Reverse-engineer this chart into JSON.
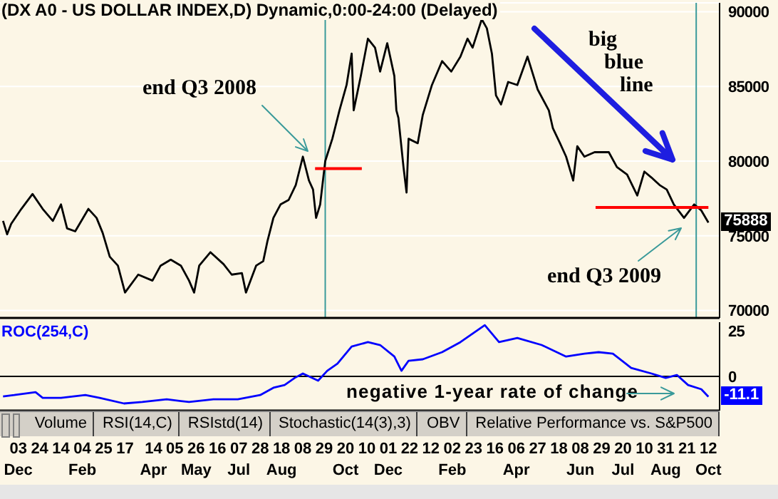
{
  "chart_data": [
    {
      "type": "line",
      "title": "(DX A0 - US DOLLAR INDEX,D) Dynamic,0:00-24:00 (Delayed)",
      "x": [
        "2007-11-18",
        "2007-11-22",
        "2007-11-26",
        "2007-12-06",
        "2007-12-17",
        "2007-12-27",
        "2008-01-06",
        "2008-01-14",
        "2008-01-20",
        "2008-01-28",
        "2008-02-10",
        "2008-02-18",
        "2008-02-24",
        "2008-03-02",
        "2008-03-10",
        "2008-03-17",
        "2008-03-30",
        "2008-04-13",
        "2008-04-21",
        "2008-05-01",
        "2008-05-11",
        "2008-05-19",
        "2008-05-24",
        "2008-05-29",
        "2008-06-09",
        "2008-06-22",
        "2008-06-30",
        "2008-07-10",
        "2008-07-14",
        "2008-07-24",
        "2008-07-31",
        "2008-08-04",
        "2008-08-10",
        "2008-08-17",
        "2008-08-25",
        "2008-09-01",
        "2008-09-08",
        "2008-09-14",
        "2008-09-18",
        "2008-09-21",
        "2008-09-25",
        "2008-09-30",
        "2008-10-07",
        "2008-10-14",
        "2008-10-21",
        "2008-10-26",
        "2008-10-28",
        "2008-11-04",
        "2008-11-11",
        "2008-11-18",
        "2008-11-23",
        "2008-11-30",
        "2008-12-07",
        "2008-12-09",
        "2008-12-11",
        "2008-12-16",
        "2008-12-19",
        "2008-12-21",
        "2008-12-30",
        "2009-01-04",
        "2009-01-13",
        "2009-01-23",
        "2009-02-01",
        "2009-02-10",
        "2009-02-17",
        "2009-02-22",
        "2009-03-03",
        "2009-03-08",
        "2009-03-13",
        "2009-03-17",
        "2009-03-22",
        "2009-03-29",
        "2009-04-07",
        "2009-04-17",
        "2009-04-27",
        "2009-05-08",
        "2009-05-12",
        "2009-05-19",
        "2009-05-25",
        "2009-06-01",
        "2009-06-05",
        "2009-06-12",
        "2009-06-22",
        "2009-07-06",
        "2009-07-14",
        "2009-07-24",
        "2009-08-03",
        "2009-08-10",
        "2009-08-17",
        "2009-08-25",
        "2009-09-01",
        "2009-09-08",
        "2009-09-18",
        "2009-09-28",
        "2009-10-05",
        "2009-10-12"
      ],
      "series": [
        {
          "color": "#000000",
          "values": [
            76000,
            75100,
            75800,
            76800,
            77800,
            76800,
            76000,
            77100,
            75500,
            75300,
            76800,
            76200,
            75200,
            73600,
            73000,
            71200,
            72400,
            72000,
            73000,
            73400,
            73000,
            72000,
            71200,
            73000,
            73900,
            73100,
            72400,
            72500,
            71200,
            73000,
            73300,
            74600,
            76200,
            77100,
            77400,
            78400,
            80300,
            78700,
            78100,
            76200,
            77100,
            80000,
            81500,
            83400,
            85100,
            87200,
            83400,
            85700,
            88200,
            87600,
            86000,
            87900,
            85700,
            83400,
            82900,
            79600,
            77900,
            81500,
            81200,
            83100,
            85100,
            86700,
            86000,
            87000,
            88200,
            87600,
            89500,
            88900,
            87200,
            84400,
            83800,
            85300,
            85100,
            87000,
            84800,
            83400,
            82200,
            81200,
            80300,
            78700,
            81000,
            80300,
            80600,
            80600,
            79600,
            79100,
            77700,
            79300,
            78900,
            78400,
            78100,
            77100,
            76200,
            77100,
            76700,
            75888
          ]
        },
        {
          "type": "line",
          "color": "#ff0000",
          "x": [
            "2008-09-20",
            "2008-11-05"
          ],
          "values": [
            79500,
            79500
          ]
        },
        {
          "type": "line",
          "color": "#ff0000",
          "x": [
            "2009-06-23",
            "2009-10-12"
          ],
          "values": [
            76900,
            76900
          ]
        }
      ],
      "xlim": [
        "2007-11-15",
        "2009-10-23"
      ],
      "ylim": [
        69500,
        90600
      ],
      "yticks": [
        70000,
        75000,
        80000,
        85000,
        90000
      ],
      "grid": "y",
      "tick_labels": "y",
      "ref_lines": [
        {
          "axis": "x",
          "value": "2008-09-30",
          "color": "#3a9a9a"
        },
        {
          "axis": "x",
          "value": "2009-09-30",
          "color": "#3a9a9a"
        }
      ],
      "annotations": [
        "end Q3 2008",
        "big blue line",
        "end Q3 2009",
        {
          "text": "75888",
          "x": "2009-10-12",
          "y": 75888
        }
      ]
    },
    {
      "type": "line",
      "x": [
        "2007-11-18",
        "2007-11-29",
        "2007-12-20",
        "2007-12-27",
        "2008-01-14",
        "2008-02-07",
        "2008-02-21",
        "2008-03-16",
        "2008-04-03",
        "2008-04-27",
        "2008-05-19",
        "2008-06-12",
        "2008-07-06",
        "2008-07-28",
        "2008-08-10",
        "2008-08-21",
        "2008-08-31",
        "2008-09-08",
        "2008-09-23",
        "2008-10-02",
        "2008-10-12",
        "2008-10-26",
        "2008-11-11",
        "2008-11-23",
        "2008-12-07",
        "2008-12-14",
        "2008-12-21",
        "2009-01-04",
        "2009-01-23",
        "2009-02-10",
        "2009-03-06",
        "2009-03-20",
        "2009-04-07",
        "2009-05-01",
        "2009-05-25",
        "2009-06-12",
        "2009-06-26",
        "2009-07-10",
        "2009-07-28",
        "2009-08-17",
        "2009-08-31",
        "2009-09-11",
        "2009-09-22",
        "2009-10-05",
        "2009-10-12"
      ],
      "series": [
        {
          "name": "ROC(254,C)",
          "color": "#0000ff",
          "values": [
            -10.9,
            -10.2,
            -8.6,
            -11.7,
            -11.7,
            -10.2,
            -11.7,
            -14.8,
            -14,
            -12.5,
            -14,
            -12.5,
            -12.5,
            -10.2,
            -6.2,
            -4.7,
            -0.8,
            1.6,
            -2.3,
            3.1,
            7,
            16.4,
            18.8,
            17.2,
            10.9,
            3.1,
            8.6,
            9.4,
            13.3,
            18.8,
            28.1,
            18.8,
            21.1,
            17.2,
            10.9,
            12.5,
            13.3,
            12.5,
            4.7,
            1.6,
            -0.8,
            0.8,
            -4.7,
            -7,
            -11.1
          ]
        }
      ],
      "xlim": [
        "2007-11-15",
        "2009-10-23"
      ],
      "xticks": [
        {
          "value": "2007-12-03",
          "label": "03\nDec"
        },
        {
          "value": "2007-12-24",
          "label": "24"
        },
        {
          "value": "2008-01-14",
          "label": "14"
        },
        {
          "value": "2008-02-04",
          "label": "04\nFeb"
        },
        {
          "value": "2008-02-25",
          "label": "25"
        },
        {
          "value": "2008-03-17",
          "label": "17"
        },
        {
          "value": "2008-04-14",
          "label": "14\nApr"
        },
        {
          "value": "2008-05-05",
          "label": "05"
        },
        {
          "value": "2008-05-26",
          "label": "26\nMay"
        },
        {
          "value": "2008-06-16",
          "label": "16"
        },
        {
          "value": "2008-07-07",
          "label": "07\nJul"
        },
        {
          "value": "2008-07-28",
          "label": "28"
        },
        {
          "value": "2008-08-18",
          "label": "18\nAug"
        },
        {
          "value": "2008-09-08",
          "label": "08"
        },
        {
          "value": "2008-09-29",
          "label": "29"
        },
        {
          "value": "2008-10-20",
          "label": "20\nOct"
        },
        {
          "value": "2008-11-10",
          "label": "10"
        },
        {
          "value": "2008-12-01",
          "label": "01\nDec"
        },
        {
          "value": "2008-12-22",
          "label": "22"
        },
        {
          "value": "2009-01-12",
          "label": "12"
        },
        {
          "value": "2009-02-02",
          "label": "02\nFeb"
        },
        {
          "value": "2009-02-23",
          "label": "23"
        },
        {
          "value": "2009-03-16",
          "label": "16"
        },
        {
          "value": "2009-04-06",
          "label": "06\nApr"
        },
        {
          "value": "2009-04-27",
          "label": "27"
        },
        {
          "value": "2009-05-18",
          "label": "18"
        },
        {
          "value": "2009-06-08",
          "label": "08\nJun"
        },
        {
          "value": "2009-06-29",
          "label": "29"
        },
        {
          "value": "2009-07-20",
          "label": "20\nJul"
        },
        {
          "value": "2009-08-10",
          "label": "10"
        },
        {
          "value": "2009-08-31",
          "label": "31\nAug"
        },
        {
          "value": "2009-09-21",
          "label": "21"
        },
        {
          "value": "2009-10-12",
          "label": "12\nOct"
        }
      ],
      "ylim": [
        -18.7,
        29.7
      ],
      "yticks": [
        0,
        25
      ],
      "legend": "top left",
      "ref_lines": [
        {
          "axis": "y",
          "value": 0,
          "color": "#000000"
        }
      ],
      "annotations": [
        "negative 1-year rate of change",
        {
          "text": "-11.1",
          "x": "2009-10-12",
          "y": -11.1
        }
      ]
    },
    {
      "type": "other",
      "annotations": [
        "Volume",
        "RSI(14,C)",
        "RSIstd(14)",
        "Stochastic(14(3),3)",
        "OBV",
        "Relative Performance vs. S&P500"
      ]
    }
  ]
}
